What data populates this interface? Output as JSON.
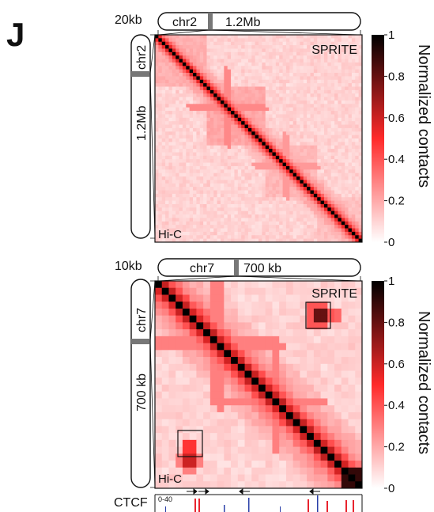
{
  "panel_label": "J",
  "colorbar": {
    "label": "Normalized contacts",
    "ticks": [
      "1",
      "0.8",
      "0.6",
      "0.4",
      "0.2",
      "0"
    ],
    "colors": [
      "#ffffff",
      "#ff2a2a",
      "#000000"
    ]
  },
  "top": {
    "resolution": "20kb",
    "chrom": "chr2",
    "region": "1.2Mb",
    "upper_label": "SPRITE",
    "lower_label": "Hi-C"
  },
  "bottom": {
    "resolution": "10kb",
    "chrom": "chr7",
    "region": "700 kb",
    "upper_label": "SPRITE",
    "lower_label": "Hi-C"
  },
  "ctcf": {
    "label": "CTCF",
    "range": "0-40"
  },
  "chart_data": [
    {
      "type": "heatmap",
      "title": "",
      "clim": [
        0,
        1
      ],
      "colorbar_label": "Normalized contacts",
      "description_axis": "chr2 1.2Mb at 20kb",
      "diagonal_value": 1.0,
      "off_diagonal_values": [
        0.55,
        0.35,
        0.25,
        0.2,
        0.18,
        0.15,
        0.12,
        0.1
      ],
      "enriched_blocks": [
        {
          "start": 0,
          "end": 0.25,
          "strength": 0.16
        },
        {
          "start": 0.25,
          "end": 0.52,
          "strength": 0.18
        },
        {
          "start": 0.52,
          "end": 0.78,
          "strength": 0.14
        },
        {
          "start": 0.78,
          "end": 1.0,
          "strength": 0.12
        }
      ]
    },
    {
      "type": "heatmap",
      "title": "",
      "clim": [
        0,
        1
      ],
      "colorbar_label": "Normalized contacts",
      "description_axis": "chr7 700 kb at 10kb",
      "diagonal_value": 1.0,
      "off_diagonal_values": [
        0.6,
        0.4,
        0.3,
        0.24,
        0.2,
        0.18,
        0.15
      ],
      "boxed_loops": [
        {
          "row": 0.15,
          "col": 0.78,
          "strength": 0.8
        },
        {
          "row": 0.85,
          "col": 0.15,
          "strength": 0.6
        }
      ]
    }
  ]
}
